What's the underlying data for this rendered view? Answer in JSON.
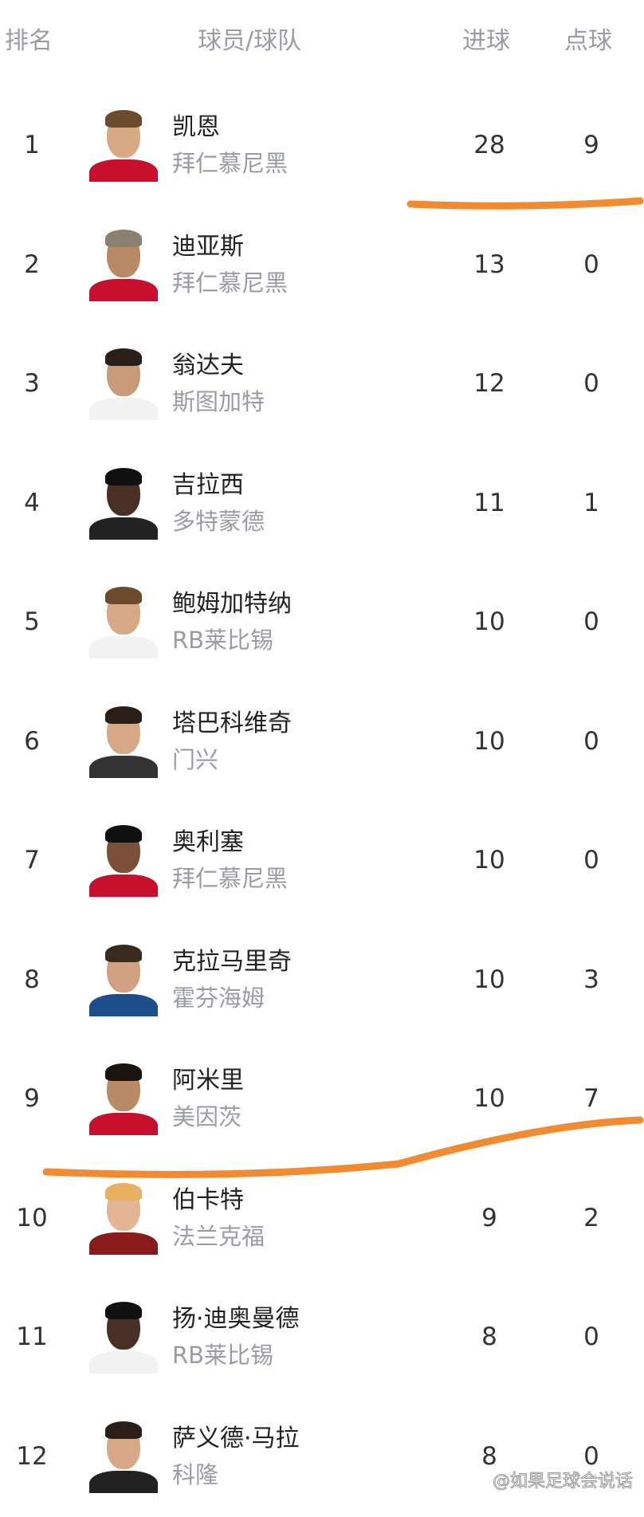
{
  "header": {
    "rank": "排名",
    "player_team": "球员/球队",
    "goals": "进球",
    "penalties": "点球"
  },
  "rows": [
    {
      "rank": "1",
      "name": "凯恩",
      "team": "拜仁慕尼黑",
      "goals": "28",
      "penalties": "9",
      "kit": "#c8102e",
      "skin": "#d9a884",
      "hair": "#6b4a2e"
    },
    {
      "rank": "2",
      "name": "迪亚斯",
      "team": "拜仁慕尼黑",
      "goals": "13",
      "penalties": "0",
      "kit": "#c8102e",
      "skin": "#b98a66",
      "hair": "#8a8070"
    },
    {
      "rank": "3",
      "name": "翁达夫",
      "team": "斯图加特",
      "goals": "12",
      "penalties": "0",
      "kit": "#f2f2f2",
      "skin": "#c99a78",
      "hair": "#2a1e18"
    },
    {
      "rank": "4",
      "name": "吉拉西",
      "team": "多特蒙德",
      "goals": "11",
      "penalties": "1",
      "kit": "#222222",
      "skin": "#4a3024",
      "hair": "#111111"
    },
    {
      "rank": "5",
      "name": "鲍姆加特纳",
      "team": "RB莱比锡",
      "goals": "10",
      "penalties": "0",
      "kit": "#f2f2f2",
      "skin": "#d6a888",
      "hair": "#6b4a2e"
    },
    {
      "rank": "6",
      "name": "塔巴科维奇",
      "team": "门兴",
      "goals": "10",
      "penalties": "0",
      "kit": "#333333",
      "skin": "#d6a888",
      "hair": "#2a1e18"
    },
    {
      "rank": "7",
      "name": "奥利塞",
      "team": "拜仁慕尼黑",
      "goals": "10",
      "penalties": "0",
      "kit": "#c8102e",
      "skin": "#7a5038",
      "hair": "#111111"
    },
    {
      "rank": "8",
      "name": "克拉马里奇",
      "team": "霍芬海姆",
      "goals": "10",
      "penalties": "3",
      "kit": "#1c4f8c",
      "skin": "#d0a080",
      "hair": "#3a2a1e"
    },
    {
      "rank": "9",
      "name": "阿米里",
      "team": "美因茨",
      "goals": "10",
      "penalties": "7",
      "kit": "#c8102e",
      "skin": "#b98a66",
      "hair": "#1a1410"
    },
    {
      "rank": "10",
      "name": "伯卡特",
      "team": "法兰克福",
      "goals": "9",
      "penalties": "2",
      "kit": "#8b1a1a",
      "skin": "#e3b594",
      "hair": "#e8b060"
    },
    {
      "rank": "11",
      "name": "扬·迪奥曼德",
      "team": "RB莱比锡",
      "goals": "8",
      "penalties": "0",
      "kit": "#f2f2f2",
      "skin": "#4a3024",
      "hair": "#111111"
    },
    {
      "rank": "12",
      "name": "萨义德·马拉",
      "team": "科隆",
      "goals": "8",
      "penalties": "0",
      "kit": "#222222",
      "skin": "#d6a888",
      "hair": "#2a1e18"
    }
  ],
  "annotations": {
    "color": "#f28a30"
  },
  "watermark": "@如果足球会说话"
}
